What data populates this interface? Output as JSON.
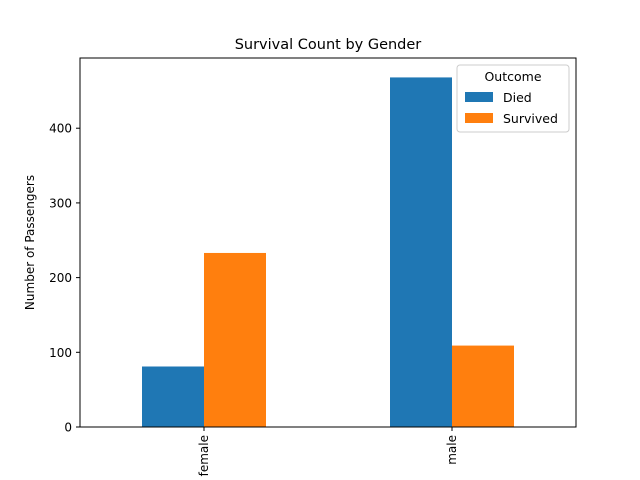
{
  "chart_data": {
    "type": "bar",
    "title": "Survival Count by Gender",
    "xlabel": "",
    "ylabel": "Number of Passengers",
    "categories": [
      "female",
      "male"
    ],
    "series": [
      {
        "name": "Died",
        "values": [
          81,
          468
        ],
        "color": "#1f77b4"
      },
      {
        "name": "Survived",
        "values": [
          233,
          109
        ],
        "color": "#ff7f0e"
      }
    ],
    "ylim": [
      0,
      494
    ],
    "yticks": [
      0,
      100,
      200,
      300,
      400
    ],
    "legend": {
      "title": "Outcome",
      "placement": "top-right"
    },
    "grid": false
  }
}
